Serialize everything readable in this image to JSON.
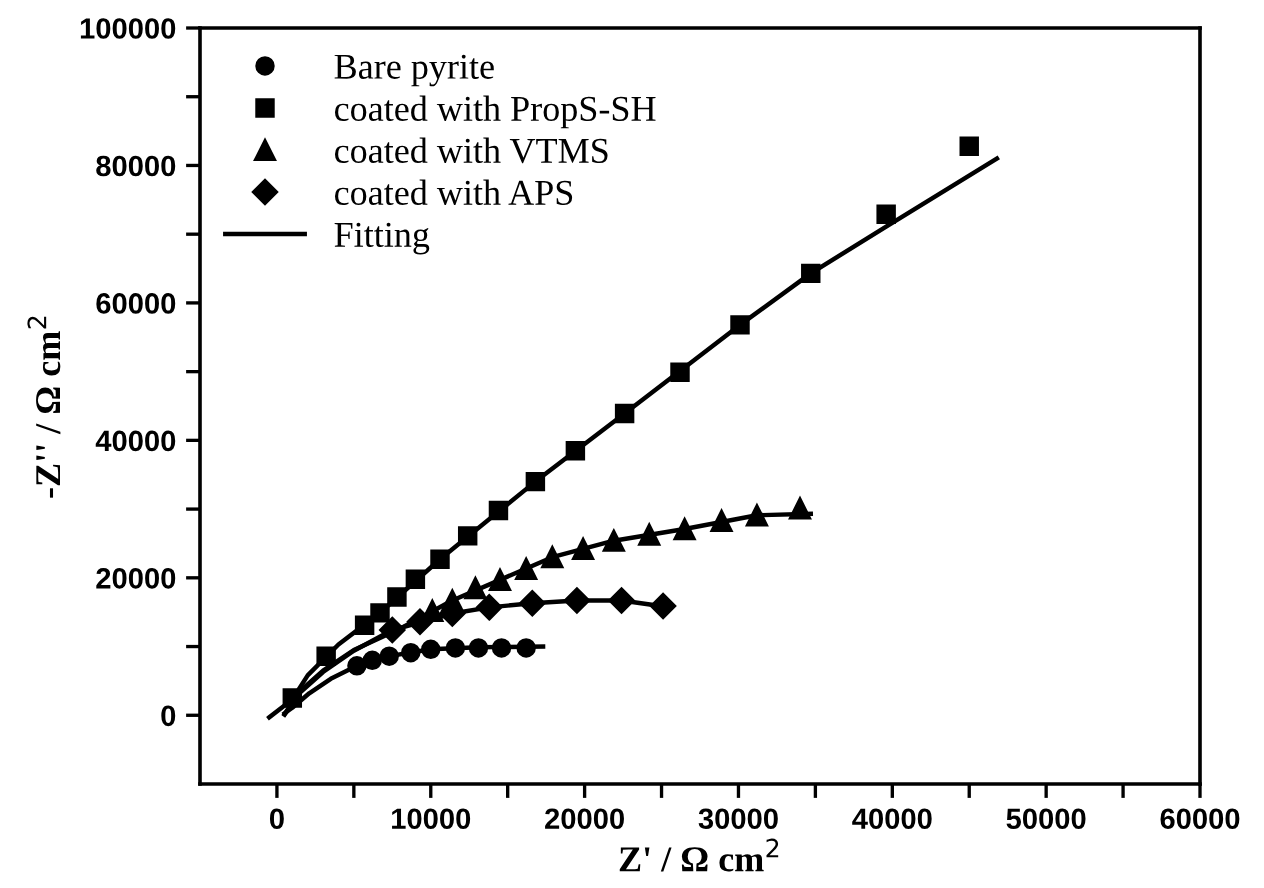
{
  "chart_data": {
    "type": "scatter",
    "xlabel": "Z' / Ω cm$^{2}$",
    "ylabel": "-Z'' / Ω cm$^{2}$",
    "xlim": [
      -5000,
      60000
    ],
    "ylim": [
      -10000,
      100000
    ],
    "xticks": [
      0,
      {
        "value": 5000,
        "label": null
      },
      10000,
      {
        "value": 15000,
        "label": null
      },
      20000,
      {
        "value": 25000,
        "label": null
      },
      30000,
      {
        "value": 35000,
        "label": null
      },
      40000,
      {
        "value": 45000,
        "label": null
      },
      50000,
      {
        "value": 55000,
        "label": null
      },
      60000
    ],
    "yticks": [
      0,
      {
        "value": 10000,
        "label": null
      },
      20000,
      {
        "value": 30000,
        "label": null
      },
      40000,
      {
        "value": 50000,
        "label": null
      },
      60000,
      {
        "value": 70000,
        "label": null
      },
      80000,
      {
        "value": 90000,
        "label": null
      },
      100000
    ],
    "grid": false,
    "legend": "top left",
    "series": [
      {
        "name": "Bare pyrite",
        "color": "#000000",
        "marker": "circle",
        "x": [
          5200,
          6200,
          7300,
          8700,
          10000,
          11600,
          13100,
          14600,
          16200
        ],
        "values": [
          7200,
          8000,
          8600,
          9100,
          9600,
          9800,
          9800,
          9800,
          9800
        ]
      },
      {
        "name": "coated with PropS-SH",
        "color": "#000000",
        "marker": "square",
        "x": [
          1000,
          3200,
          5700,
          6700,
          7800,
          9000,
          10600,
          12400,
          14400,
          16800,
          19400,
          22600,
          26200,
          30100,
          34700,
          39600,
          45000
        ],
        "values": [
          2500,
          8600,
          13100,
          14900,
          17200,
          19800,
          22700,
          26100,
          29800,
          34000,
          38500,
          43900,
          49900,
          56800,
          64300,
          72900,
          82800
        ]
      },
      {
        "name": "coated with VTMS",
        "color": "#000000",
        "marker": "triangle",
        "x": [
          10100,
          11400,
          12900,
          14500,
          16200,
          17900,
          19900,
          21900,
          24200,
          26500,
          28900,
          31200,
          34000
        ],
        "values": [
          15200,
          16700,
          18500,
          19700,
          21300,
          23000,
          24200,
          25400,
          26300,
          27100,
          28300,
          29100,
          30100
        ]
      },
      {
        "name": "coated with APS",
        "color": "#000000",
        "marker": "diamond",
        "x": [
          7500,
          9300,
          11400,
          13800,
          16600,
          19500,
          22400,
          25100
        ],
        "values": [
          12400,
          13600,
          14800,
          15700,
          16300,
          16700,
          16700,
          15900
        ]
      },
      {
        "name": "Fitting",
        "type": "line",
        "color": "#000000",
        "marker": "none",
        "x": [
          500,
          1000,
          2100,
          3500,
          5200,
          7300,
          10000,
          13100,
          17300
        ],
        "values": [
          300,
          1100,
          3200,
          5300,
          7200,
          8600,
          9600,
          9900,
          10000
        ]
      },
      {
        "type": "line",
        "color": "#000000",
        "marker": "none",
        "x": [
          -500,
          1000,
          2000,
          4000,
          6700,
          10600,
          16800,
          22600,
          30100,
          34700,
          39600,
          46800
        ],
        "values": [
          -300,
          2300,
          5800,
          10300,
          14900,
          22700,
          34000,
          43900,
          56800,
          64300,
          71100,
          81000
        ]
      },
      {
        "type": "line",
        "color": "#000000",
        "marker": "none",
        "x": [
          500,
          1500,
          3000,
          5000,
          8000,
          11400,
          14500,
          17900,
          21900,
          26500,
          31200,
          34700
        ],
        "values": [
          200,
          3500,
          6500,
          9500,
          12600,
          16700,
          19700,
          23000,
          25400,
          27100,
          29100,
          29300
        ]
      },
      {
        "type": "line",
        "color": "#000000",
        "marker": "none",
        "x": [
          500,
          1500,
          3000,
          5000,
          7500,
          11400,
          13800,
          16600,
          19500,
          22400,
          25600
        ],
        "values": [
          100,
          3300,
          6300,
          9400,
          12400,
          14800,
          15700,
          16300,
          16700,
          16700,
          15700
        ]
      }
    ]
  }
}
